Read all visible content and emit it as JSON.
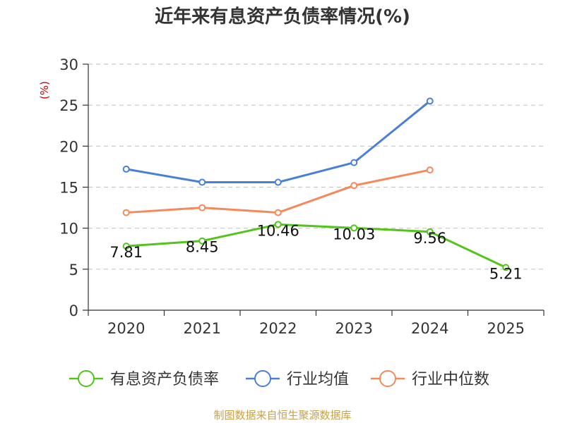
{
  "chart_data": {
    "type": "line",
    "title": "近年来有息资产负债率情况(%)",
    "unit_label": "(%)",
    "categories": [
      "2020",
      "2021",
      "2022",
      "2023",
      "2024",
      "2025"
    ],
    "ylim": [
      0,
      30
    ],
    "yticks": [
      "0",
      "5",
      "10",
      "15",
      "20",
      "25",
      "30"
    ],
    "grid": true,
    "legend_position": "bottom",
    "series": [
      {
        "name": "有息资产负债率",
        "color": "#52c41a",
        "values": [
          7.81,
          8.45,
          10.46,
          10.03,
          9.56,
          5.21
        ],
        "labels": [
          "7.81",
          "8.45",
          "10.46",
          "10.03",
          "9.56",
          "5.21"
        ]
      },
      {
        "name": "行业均值",
        "color": "#4a7fd6",
        "values": [
          17.2,
          15.6,
          15.6,
          18.0,
          25.5,
          null
        ]
      },
      {
        "name": "行业中位数",
        "color": "#f5895c",
        "values": [
          11.9,
          12.5,
          11.9,
          15.2,
          17.1,
          null
        ]
      }
    ],
    "source": "制图数据来自恒生聚源数据库"
  }
}
